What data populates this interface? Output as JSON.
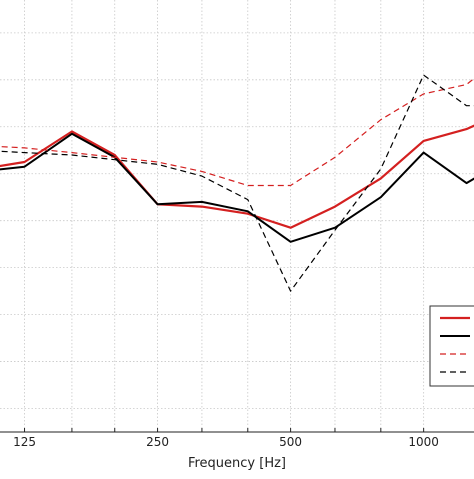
{
  "chart_data": {
    "type": "line",
    "title": "",
    "xlabel": "Frequency [Hz]",
    "ylabel": "",
    "x_scale": "log",
    "xlim": [
      110,
      1300
    ],
    "ylim": [
      0,
      9.2
    ],
    "grid": true,
    "legend_position": "bottom-right",
    "x_tick_labels": [
      {
        "value": 125,
        "label": "125"
      },
      {
        "value": 250,
        "label": "250"
      },
      {
        "value": 500,
        "label": "500"
      },
      {
        "value": 1000,
        "label": "1000"
      }
    ],
    "x_minor_gridlines": [
      160,
      200,
      315,
      400,
      630,
      800
    ],
    "y_gridlines": [
      0.5,
      1.5,
      2.5,
      3.5,
      4.5,
      5.5,
      6.5,
      7.5,
      8.5
    ],
    "series": [
      {
        "color": "#d42020",
        "dash": "solid",
        "width": 2.2,
        "x": [
          100,
          125,
          160,
          200,
          250,
          315,
          400,
          500,
          630,
          800,
          1000,
          1250,
          1600
        ],
        "y": [
          5.6,
          5.75,
          6.4,
          5.9,
          4.85,
          4.8,
          4.65,
          4.35,
          4.8,
          5.4,
          6.2,
          6.45,
          6.9
        ]
      },
      {
        "color": "#000000",
        "dash": "solid",
        "width": 2.0,
        "x": [
          100,
          125,
          160,
          200,
          250,
          315,
          400,
          500,
          630,
          800,
          1000,
          1250,
          1600
        ],
        "y": [
          5.55,
          5.65,
          6.35,
          5.85,
          4.85,
          4.9,
          4.7,
          4.05,
          4.35,
          5.0,
          5.95,
          5.3,
          5.9
        ]
      },
      {
        "color": "#d42020",
        "dash": "dashed",
        "width": 1.2,
        "x": [
          100,
          125,
          160,
          200,
          250,
          315,
          400,
          500,
          630,
          800,
          1000,
          1250,
          1600
        ],
        "y": [
          6.1,
          6.05,
          5.95,
          5.85,
          5.75,
          5.55,
          5.25,
          5.25,
          5.85,
          6.65,
          7.2,
          7.4,
          8.2
        ]
      },
      {
        "color": "#000000",
        "dash": "dashed",
        "width": 1.2,
        "x": [
          100,
          125,
          160,
          200,
          250,
          315,
          400,
          500,
          630,
          800,
          1000,
          1250,
          1600
        ],
        "y": [
          6.0,
          5.95,
          5.9,
          5.8,
          5.7,
          5.45,
          4.95,
          3.0,
          4.3,
          5.6,
          7.6,
          6.95,
          6.95
        ]
      }
    ]
  }
}
